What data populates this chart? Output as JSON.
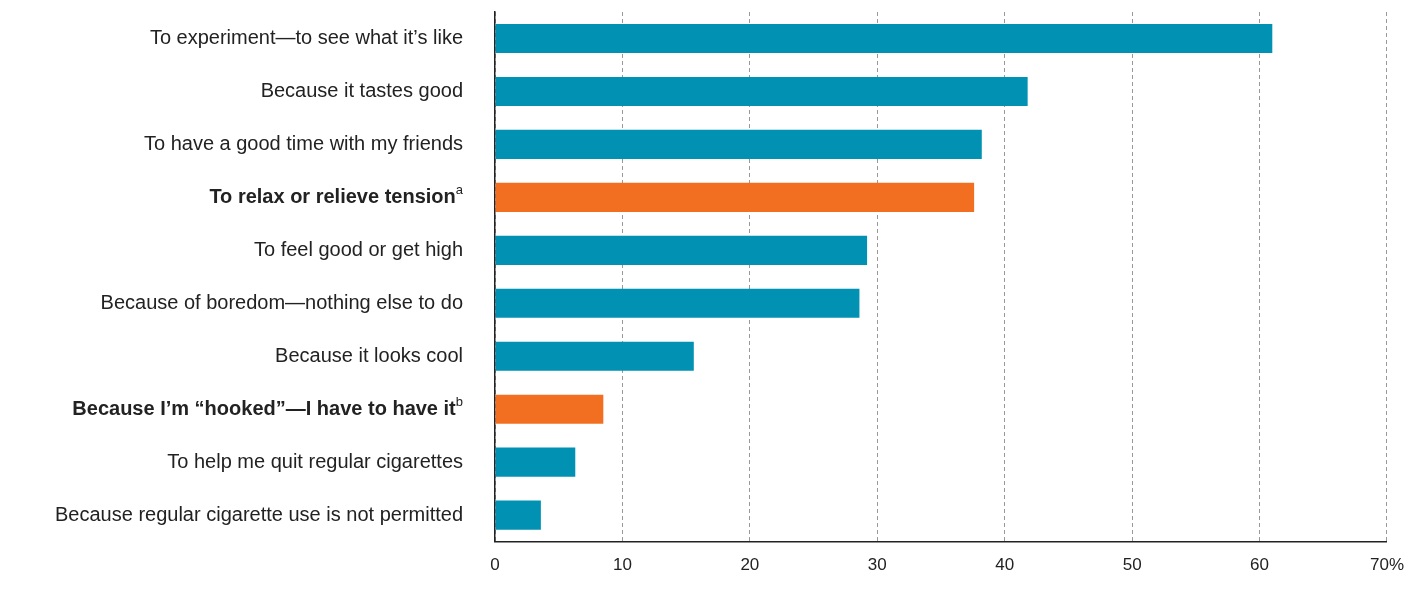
{
  "chart_data": {
    "type": "bar",
    "orientation": "horizontal",
    "categories": [
      "To experiment—to see what it’s like",
      "Because it tastes good",
      "To have a good time with my friends",
      "To relax or relieve tension$^{a}$",
      "To feel good or get high",
      "Because of boredom—nothing else to do",
      "Because it looks cool",
      "Because I’m “hooked”—I have to have it$^{b}$",
      "To help me quit regular cigarettes",
      "Because regular cigarette use is not permitted"
    ],
    "values": [
      61,
      41.8,
      38.2,
      37.6,
      29.2,
      28.6,
      15.6,
      8.5,
      6.3,
      3.6
    ],
    "colors": [
      "#0091b3",
      "#0091b3",
      "#0091b3",
      "#f26f21",
      "#0091b3",
      "#0091b3",
      "#0091b3",
      "#f26f21",
      "#0091b3",
      "#0091b3"
    ],
    "xlim": [
      0,
      70
    ],
    "xticks": [
      0,
      10,
      20,
      30,
      40,
      50,
      60,
      {
        "value": 70,
        "label": "70%"
      }
    ],
    "grid": "x",
    "legend": false
  }
}
